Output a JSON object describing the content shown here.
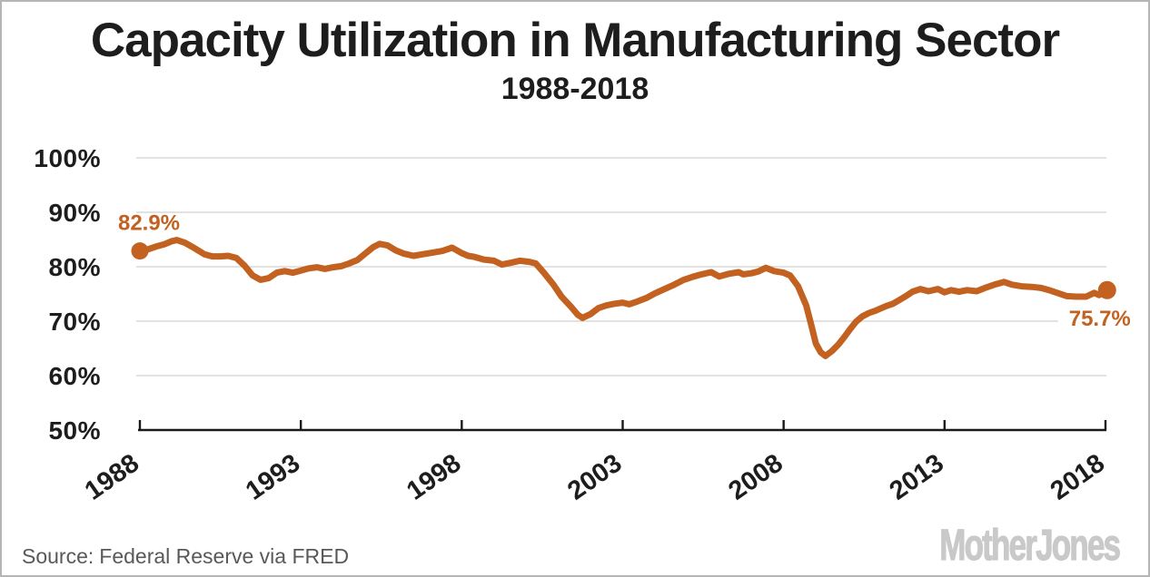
{
  "page": {
    "border_color": "#b5b5b5",
    "background": "#ffffff"
  },
  "footer": {
    "source_label": "Source:",
    "source_text": "Federal Reserve via FRED",
    "logo_text": "MotherJones"
  },
  "chart_data": {
    "type": "line",
    "title": "Capacity Utilization in Manufacturing Sector",
    "subtitle": "1988-2018",
    "xlabel": "",
    "ylabel": "",
    "x_ticks": [
      1988,
      1993,
      1998,
      2003,
      2008,
      2013,
      2018
    ],
    "y_ticks": [
      {
        "label": "100%",
        "value": 100
      },
      {
        "label": "90%",
        "value": 90
      },
      {
        "label": "80%",
        "value": 80
      },
      {
        "label": "70%",
        "value": 70
      },
      {
        "label": "60%",
        "value": 60
      },
      {
        "label": "50%",
        "value": 50
      }
    ],
    "xlim": [
      1988,
      2018.1
    ],
    "ylim": [
      50,
      100
    ],
    "grid": "horizontal gridlines at 60-100, light gray; baseline axis at 50",
    "legend": "none",
    "line_color": "#c26120",
    "label_color": "#c26120",
    "gridline_color": "#d8d8d8",
    "axis_color": "#1a1a1a",
    "endpoint_labels": [
      {
        "text": "82.9%",
        "year": 1988.0,
        "value": 82.9,
        "position": "above"
      },
      {
        "text": "75.7%",
        "year": 2018.05,
        "value": 75.7,
        "position": "below"
      }
    ],
    "series": [
      {
        "name": "Capacity utilization, manufacturing sector",
        "points": [
          [
            1988.0,
            82.9
          ],
          [
            1988.25,
            83.2
          ],
          [
            1988.5,
            83.7
          ],
          [
            1988.75,
            84.1
          ],
          [
            1989.0,
            84.7
          ],
          [
            1989.15,
            84.9
          ],
          [
            1989.4,
            84.4
          ],
          [
            1989.7,
            83.4
          ],
          [
            1990.0,
            82.3
          ],
          [
            1990.25,
            81.9
          ],
          [
            1990.5,
            81.9
          ],
          [
            1990.75,
            82.0
          ],
          [
            1991.0,
            81.6
          ],
          [
            1991.25,
            80.2
          ],
          [
            1991.5,
            78.4
          ],
          [
            1991.75,
            77.6
          ],
          [
            1992.0,
            77.9
          ],
          [
            1992.25,
            78.9
          ],
          [
            1992.5,
            79.2
          ],
          [
            1992.75,
            78.9
          ],
          [
            1993.0,
            79.3
          ],
          [
            1993.25,
            79.7
          ],
          [
            1993.5,
            79.9
          ],
          [
            1993.75,
            79.6
          ],
          [
            1994.0,
            79.9
          ],
          [
            1994.25,
            80.1
          ],
          [
            1994.5,
            80.6
          ],
          [
            1994.75,
            81.2
          ],
          [
            1995.0,
            82.4
          ],
          [
            1995.25,
            83.6
          ],
          [
            1995.45,
            84.2
          ],
          [
            1995.7,
            83.9
          ],
          [
            1995.95,
            83.0
          ],
          [
            1996.2,
            82.4
          ],
          [
            1996.5,
            82.0
          ],
          [
            1996.8,
            82.3
          ],
          [
            1997.1,
            82.6
          ],
          [
            1997.4,
            82.9
          ],
          [
            1997.7,
            83.5
          ],
          [
            1998.0,
            82.5
          ],
          [
            1998.2,
            82.0
          ],
          [
            1998.4,
            81.8
          ],
          [
            1998.7,
            81.3
          ],
          [
            1999.0,
            81.1
          ],
          [
            1999.25,
            80.4
          ],
          [
            1999.5,
            80.7
          ],
          [
            1999.8,
            81.1
          ],
          [
            2000.1,
            80.9
          ],
          [
            2000.3,
            80.6
          ],
          [
            2000.55,
            78.9
          ],
          [
            2000.85,
            76.7
          ],
          [
            2001.1,
            74.5
          ],
          [
            2001.4,
            72.6
          ],
          [
            2001.6,
            71.2
          ],
          [
            2001.75,
            70.6
          ],
          [
            2002.0,
            71.3
          ],
          [
            2002.25,
            72.4
          ],
          [
            2002.5,
            72.9
          ],
          [
            2002.75,
            73.2
          ],
          [
            2003.0,
            73.4
          ],
          [
            2003.2,
            73.1
          ],
          [
            2003.45,
            73.6
          ],
          [
            2003.75,
            74.3
          ],
          [
            2004.0,
            75.1
          ],
          [
            2004.3,
            75.9
          ],
          [
            2004.6,
            76.7
          ],
          [
            2004.9,
            77.6
          ],
          [
            2005.15,
            78.1
          ],
          [
            2005.45,
            78.6
          ],
          [
            2005.75,
            79.0
          ],
          [
            2006.0,
            78.2
          ],
          [
            2006.3,
            78.7
          ],
          [
            2006.6,
            79.0
          ],
          [
            2006.75,
            78.6
          ],
          [
            2007.0,
            78.8
          ],
          [
            2007.2,
            79.1
          ],
          [
            2007.45,
            79.8
          ],
          [
            2007.7,
            79.2
          ],
          [
            2008.0,
            78.9
          ],
          [
            2008.2,
            78.4
          ],
          [
            2008.45,
            76.4
          ],
          [
            2008.7,
            72.9
          ],
          [
            2008.85,
            69.5
          ],
          [
            2009.0,
            65.9
          ],
          [
            2009.15,
            64.3
          ],
          [
            2009.3,
            63.6
          ],
          [
            2009.5,
            64.5
          ],
          [
            2009.7,
            65.7
          ],
          [
            2009.9,
            67.2
          ],
          [
            2010.05,
            68.4
          ],
          [
            2010.25,
            69.9
          ],
          [
            2010.45,
            70.9
          ],
          [
            2010.65,
            71.5
          ],
          [
            2010.85,
            71.9
          ],
          [
            2011.0,
            72.3
          ],
          [
            2011.2,
            72.8
          ],
          [
            2011.4,
            73.2
          ],
          [
            2011.6,
            73.9
          ],
          [
            2011.8,
            74.6
          ],
          [
            2012.0,
            75.4
          ],
          [
            2012.25,
            75.9
          ],
          [
            2012.5,
            75.5
          ],
          [
            2012.8,
            75.9
          ],
          [
            2013.0,
            75.3
          ],
          [
            2013.2,
            75.7
          ],
          [
            2013.45,
            75.4
          ],
          [
            2013.7,
            75.7
          ],
          [
            2014.0,
            75.5
          ],
          [
            2014.3,
            76.2
          ],
          [
            2014.6,
            76.8
          ],
          [
            2014.85,
            77.2
          ],
          [
            2015.1,
            76.7
          ],
          [
            2015.4,
            76.4
          ],
          [
            2015.7,
            76.3
          ],
          [
            2016.0,
            76.1
          ],
          [
            2016.3,
            75.6
          ],
          [
            2016.55,
            75.1
          ],
          [
            2016.8,
            74.6
          ],
          [
            2017.1,
            74.5
          ],
          [
            2017.4,
            74.5
          ],
          [
            2017.65,
            75.2
          ],
          [
            2017.8,
            74.8
          ],
          [
            2017.95,
            75.5
          ],
          [
            2018.05,
            75.7
          ]
        ]
      }
    ]
  }
}
